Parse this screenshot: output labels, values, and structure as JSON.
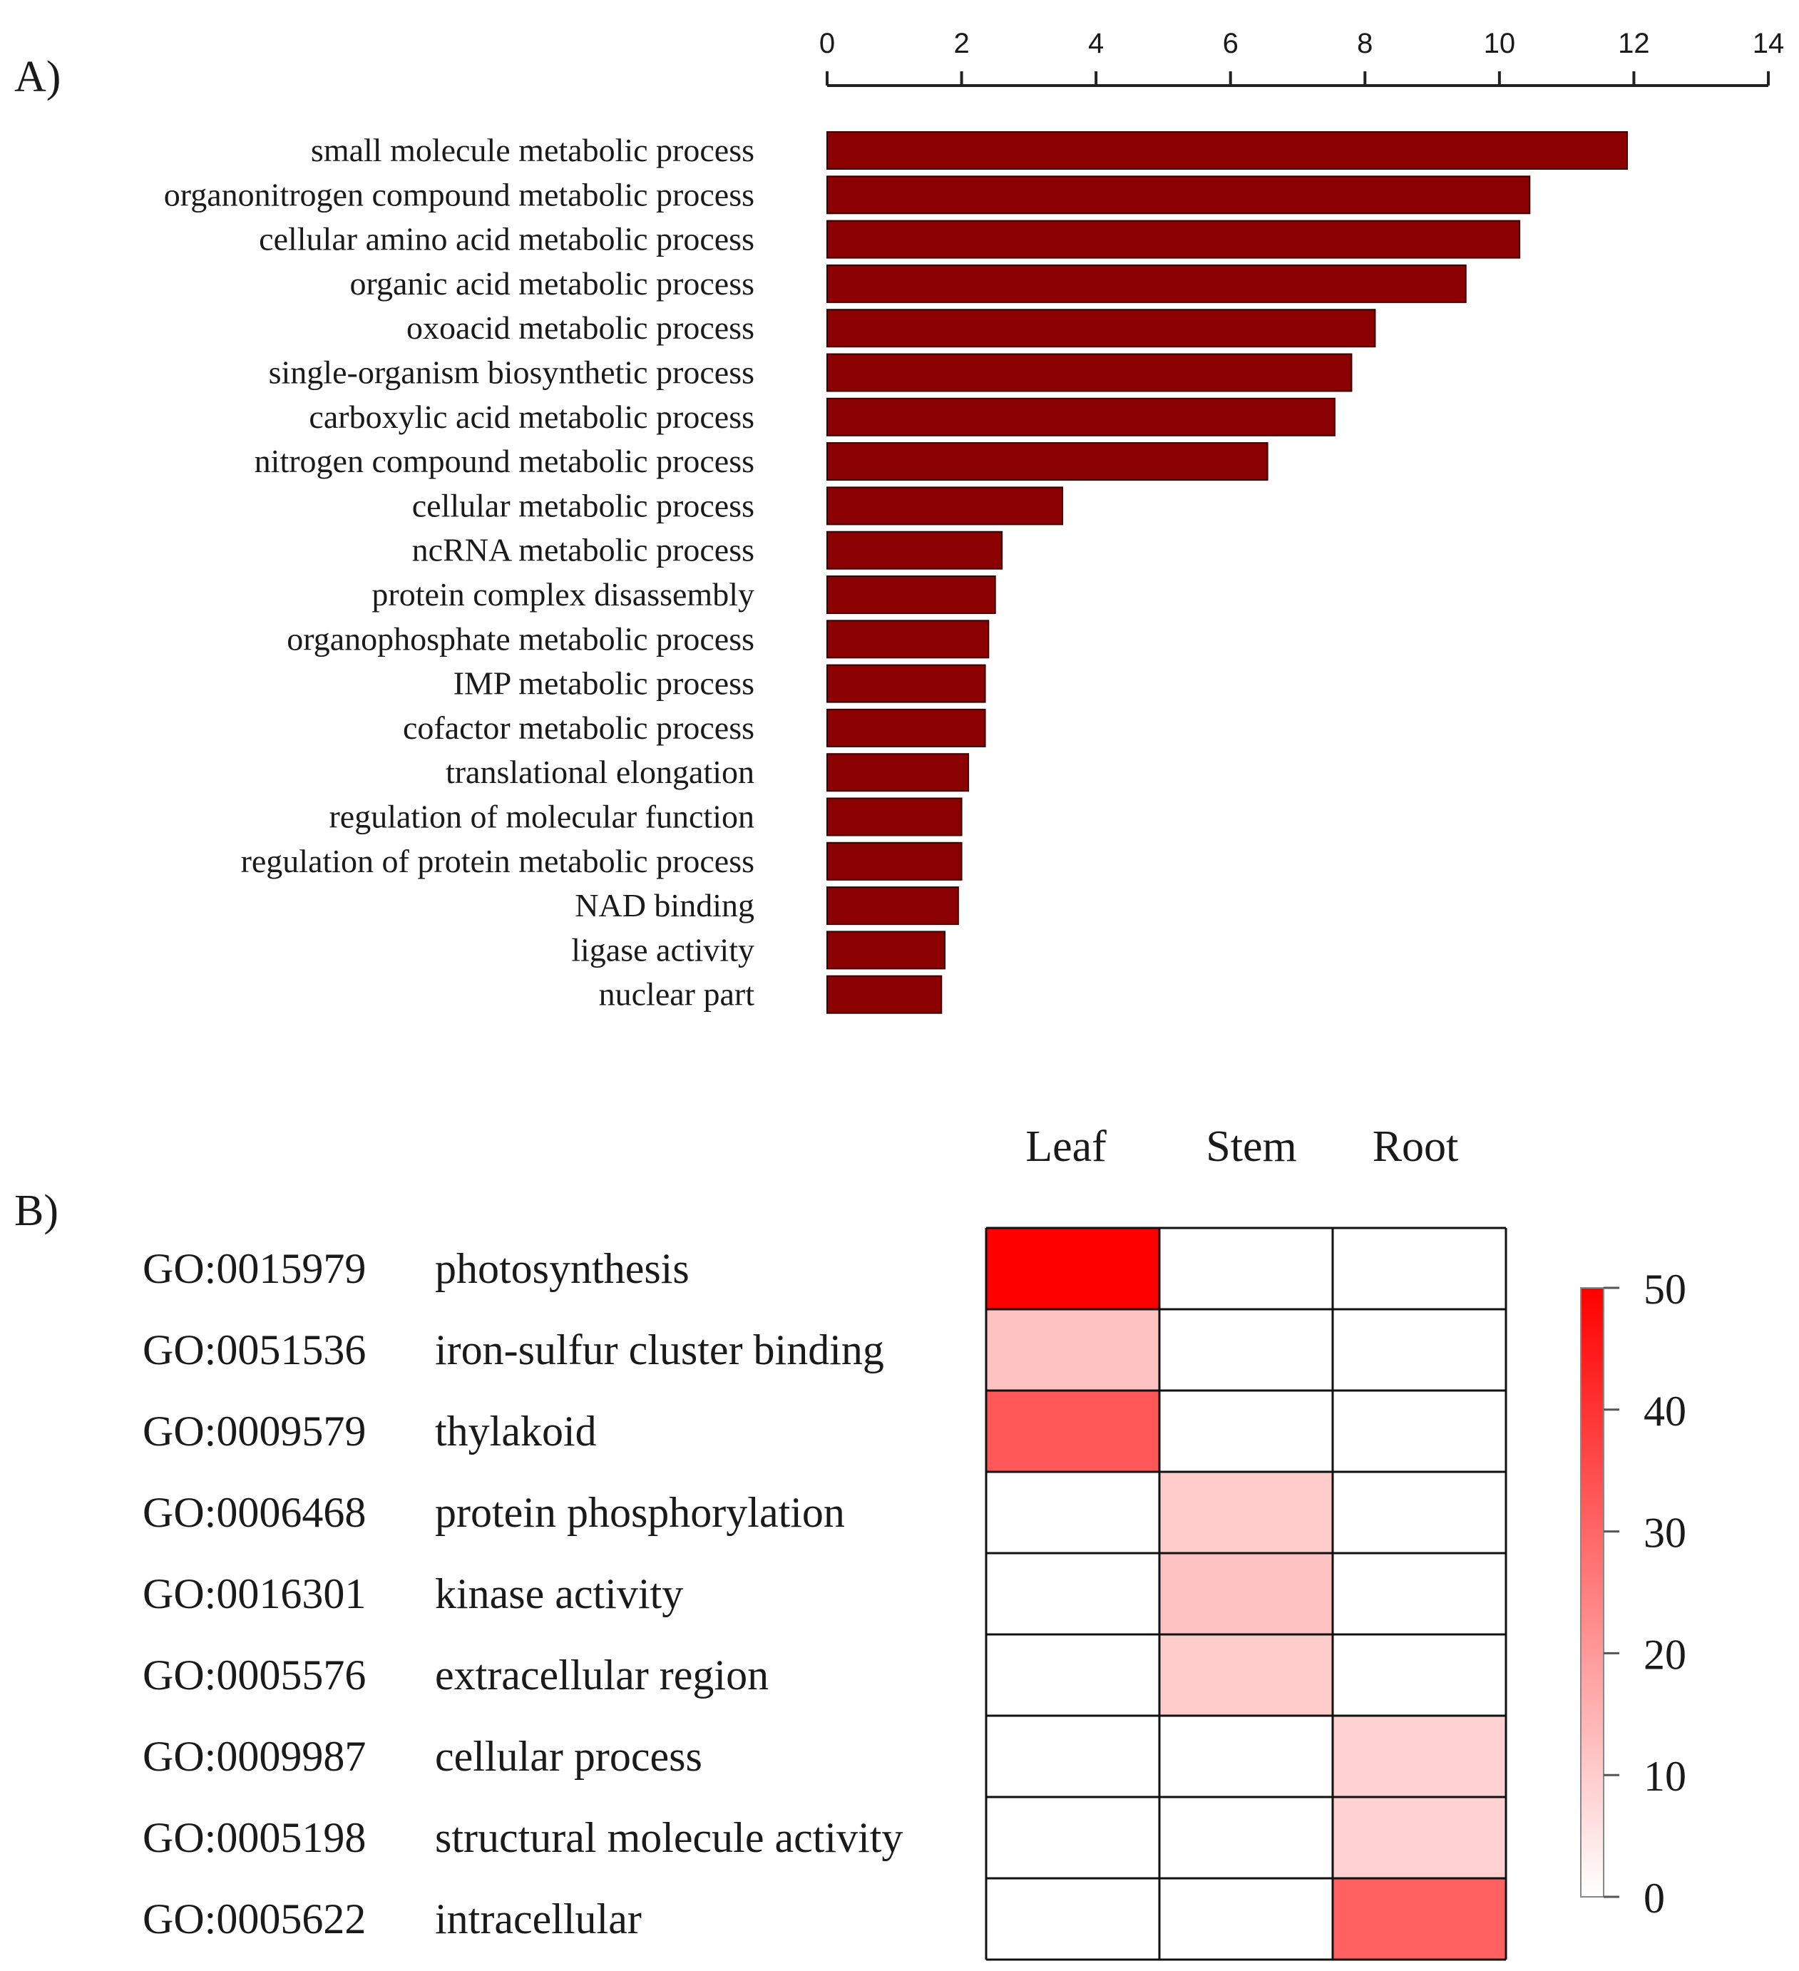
{
  "chart_data": [
    {
      "type": "bar",
      "orientation": "horizontal",
      "panel_label": "A)",
      "title": "",
      "xlabel": "",
      "ylabel": "",
      "xlim": [
        0,
        14
      ],
      "ticks": [
        "0",
        "2",
        "4",
        "6",
        "8",
        "10",
        "12",
        "14"
      ],
      "axis_position": "top",
      "bar_color": "#8b0000",
      "categories": [
        "small molecule metabolic process",
        "organonitrogen compound metabolic process",
        "cellular amino acid metabolic process",
        "organic acid metabolic process",
        "oxoacid metabolic process",
        "single-organism biosynthetic process",
        "carboxylic acid metabolic process",
        "nitrogen compound metabolic process",
        "cellular metabolic process",
        "ncRNA metabolic process",
        "protein complex disassembly",
        "organophosphate metabolic process",
        "IMP metabolic process",
        "cofactor metabolic process",
        "translational elongation",
        "regulation of molecular function",
        "regulation of protein metabolic process",
        "NAD binding",
        "ligase activity",
        "nuclear part"
      ],
      "values": [
        11.9,
        10.45,
        10.3,
        9.5,
        8.15,
        7.8,
        7.55,
        6.55,
        3.5,
        2.6,
        2.5,
        2.4,
        2.35,
        2.35,
        2.1,
        2.0,
        2.0,
        1.95,
        1.75,
        1.7
      ]
    },
    {
      "type": "heatmap",
      "panel_label": "B)",
      "columns": [
        "Leaf",
        "Stem",
        "Root"
      ],
      "rows": [
        {
          "id": "GO:0015979",
          "term": "photosynthesis",
          "values": [
            50,
            0,
            0
          ]
        },
        {
          "id": "GO:0051536",
          "term": "iron-sulfur cluster binding",
          "values": [
            12,
            0,
            0
          ]
        },
        {
          "id": "GO:0009579",
          "term": "thylakoid",
          "values": [
            33,
            0,
            0
          ]
        },
        {
          "id": "GO:0006468",
          "term": "protein phosphorylation",
          "values": [
            0,
            10,
            0
          ]
        },
        {
          "id": "GO:0016301",
          "term": "kinase activity",
          "values": [
            0,
            12,
            0
          ]
        },
        {
          "id": "GO:0005576",
          "term": "extracellular region",
          "values": [
            0,
            10,
            0
          ]
        },
        {
          "id": "GO:0009987",
          "term": "cellular process",
          "values": [
            0,
            0,
            9
          ]
        },
        {
          "id": "GO:0005198",
          "term": "structural molecule activity",
          "values": [
            0,
            0,
            9
          ]
        },
        {
          "id": "GO:0005622",
          "term": "intracellular",
          "values": [
            0,
            0,
            31
          ]
        }
      ],
      "colorbar": {
        "min": 0,
        "max": 50,
        "ticks": [
          "0",
          "10",
          "20",
          "30",
          "40",
          "50"
        ],
        "low_color": "#ffffff",
        "high_color": "#ff0000"
      }
    }
  ]
}
